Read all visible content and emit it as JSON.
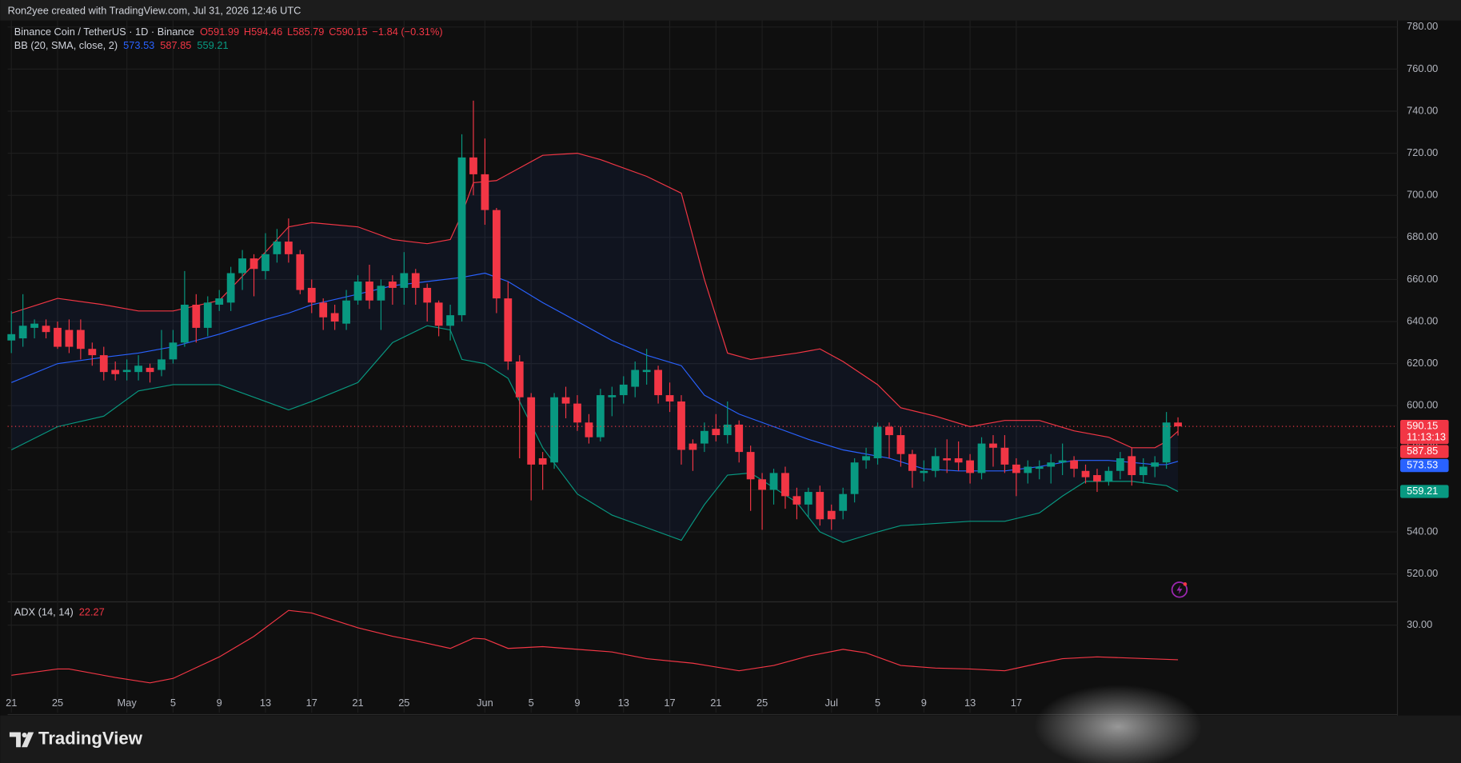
{
  "chart_data": {
    "type": "candlestick",
    "attribution": "Ron2yee created with TradingView.com, Jul 31, 2026 12:46 UTC",
    "symbol": "Binance Coin / TetherUS · 1D · Binance",
    "ohlc": [
      "O591.99",
      "H594.46",
      "L585.79",
      "C590.15",
      "−1.84 (−0.31%)"
    ],
    "countdown": "11:13:13",
    "brand": "TradingView",
    "up_color": "#089981",
    "down_color": "#f23645",
    "xlim": [
      -0.32,
      120
    ],
    "xticks": [
      {
        "value": 0,
        "label": "21"
      },
      {
        "value": 4,
        "label": "25"
      },
      {
        "value": 10,
        "label": "May"
      },
      {
        "value": 14,
        "label": "5"
      },
      {
        "value": 18,
        "label": "9"
      },
      {
        "value": 22,
        "label": "13"
      },
      {
        "value": 26,
        "label": "17"
      },
      {
        "value": 30,
        "label": "21"
      },
      {
        "value": 34,
        "label": "25"
      },
      {
        "value": 41,
        "label": "Jun"
      },
      {
        "value": 45,
        "label": "5"
      },
      {
        "value": 49,
        "label": "9"
      },
      {
        "value": 53,
        "label": "13"
      },
      {
        "value": 57,
        "label": "17"
      },
      {
        "value": 61,
        "label": "21"
      },
      {
        "value": 65,
        "label": "25"
      },
      {
        "value": 71,
        "label": "Jul"
      },
      {
        "value": 75,
        "label": "5"
      },
      {
        "value": 79,
        "label": "9"
      },
      {
        "value": 83,
        "label": "13"
      },
      {
        "value": 87,
        "label": "17"
      }
    ],
    "ylim": [
      507.2,
      783.1
    ],
    "yticks": [
      {
        "value": 520,
        "label": "520.00"
      },
      {
        "value": 540,
        "label": "540.00"
      },
      {
        "value": 560,
        "label": "560.00"
      },
      {
        "value": 580,
        "label": "580.00"
      },
      {
        "value": 600,
        "label": "600.00"
      },
      {
        "value": 620,
        "label": "620.00"
      },
      {
        "value": 640,
        "label": "640.00"
      },
      {
        "value": 660,
        "label": "660.00"
      },
      {
        "value": 680,
        "label": "680.00"
      },
      {
        "value": 700,
        "label": "700.00"
      },
      {
        "value": 720,
        "label": "720.00"
      },
      {
        "value": 740,
        "label": "740.00"
      },
      {
        "value": 760,
        "label": "760.00"
      },
      {
        "value": 780,
        "label": "780.00"
      }
    ],
    "grid": true,
    "candles": [
      {
        "o": 631,
        "h": 645,
        "l": 625,
        "c": 634
      },
      {
        "o": 632,
        "h": 653,
        "l": 628,
        "c": 638
      },
      {
        "o": 637,
        "h": 641,
        "l": 632,
        "c": 639
      },
      {
        "o": 638,
        "h": 641,
        "l": 632,
        "c": 635
      },
      {
        "o": 637,
        "h": 640,
        "l": 627,
        "c": 628
      },
      {
        "o": 636,
        "h": 641,
        "l": 625,
        "c": 628
      },
      {
        "o": 636,
        "h": 641,
        "l": 622,
        "c": 627
      },
      {
        "o": 627,
        "h": 630,
        "l": 619,
        "c": 624
      },
      {
        "o": 624,
        "h": 628,
        "l": 612,
        "c": 616
      },
      {
        "o": 617,
        "h": 621,
        "l": 612,
        "c": 615
      },
      {
        "o": 616,
        "h": 622,
        "l": 612,
        "c": 617
      },
      {
        "o": 616,
        "h": 624,
        "l": 612,
        "c": 619
      },
      {
        "o": 618,
        "h": 620,
        "l": 611,
        "c": 616
      },
      {
        "o": 617,
        "h": 636,
        "l": 614,
        "c": 622
      },
      {
        "o": 622,
        "h": 636,
        "l": 620,
        "c": 630
      },
      {
        "o": 630,
        "h": 664,
        "l": 628,
        "c": 648
      },
      {
        "o": 648,
        "h": 653,
        "l": 630,
        "c": 637
      },
      {
        "o": 637,
        "h": 652,
        "l": 633,
        "c": 649
      },
      {
        "o": 648,
        "h": 655,
        "l": 645,
        "c": 651
      },
      {
        "o": 649,
        "h": 666,
        "l": 645,
        "c": 663
      },
      {
        "o": 663,
        "h": 674,
        "l": 655,
        "c": 670
      },
      {
        "o": 670,
        "h": 672,
        "l": 652,
        "c": 665
      },
      {
        "o": 664,
        "h": 682,
        "l": 660,
        "c": 672
      },
      {
        "o": 672,
        "h": 684,
        "l": 668,
        "c": 678
      },
      {
        "o": 678,
        "h": 689,
        "l": 668,
        "c": 672
      },
      {
        "o": 672,
        "h": 674,
        "l": 653,
        "c": 655
      },
      {
        "o": 656,
        "h": 660,
        "l": 644,
        "c": 649
      },
      {
        "o": 649,
        "h": 651,
        "l": 636,
        "c": 642
      },
      {
        "o": 644,
        "h": 648,
        "l": 636,
        "c": 640
      },
      {
        "o": 639,
        "h": 655,
        "l": 636,
        "c": 650
      },
      {
        "o": 650,
        "h": 662,
        "l": 648,
        "c": 659
      },
      {
        "o": 659,
        "h": 667,
        "l": 646,
        "c": 650
      },
      {
        "o": 650,
        "h": 660,
        "l": 636,
        "c": 657
      },
      {
        "o": 659,
        "h": 662,
        "l": 648,
        "c": 656
      },
      {
        "o": 656,
        "h": 673,
        "l": 648,
        "c": 663
      },
      {
        "o": 663,
        "h": 665,
        "l": 648,
        "c": 656
      },
      {
        "o": 656,
        "h": 658,
        "l": 640,
        "c": 649
      },
      {
        "o": 649,
        "h": 650,
        "l": 633,
        "c": 638
      },
      {
        "o": 638,
        "h": 648,
        "l": 631,
        "c": 643
      },
      {
        "o": 643,
        "h": 729,
        "l": 640,
        "c": 718
      },
      {
        "o": 718,
        "h": 745,
        "l": 700,
        "c": 710
      },
      {
        "o": 710,
        "h": 727,
        "l": 686,
        "c": 693
      },
      {
        "o": 693,
        "h": 694,
        "l": 644,
        "c": 651
      },
      {
        "o": 651,
        "h": 659,
        "l": 617,
        "c": 621
      },
      {
        "o": 621,
        "h": 624,
        "l": 575,
        "c": 604
      },
      {
        "o": 604,
        "h": 606,
        "l": 555,
        "c": 572
      },
      {
        "o": 575,
        "h": 578,
        "l": 560,
        "c": 572
      },
      {
        "o": 573,
        "h": 606,
        "l": 570,
        "c": 604
      },
      {
        "o": 604,
        "h": 609,
        "l": 594,
        "c": 601
      },
      {
        "o": 601,
        "h": 605,
        "l": 588,
        "c": 592
      },
      {
        "o": 592,
        "h": 596,
        "l": 582,
        "c": 585
      },
      {
        "o": 585,
        "h": 608,
        "l": 583,
        "c": 605
      },
      {
        "o": 604,
        "h": 609,
        "l": 595,
        "c": 605
      },
      {
        "o": 605,
        "h": 614,
        "l": 601,
        "c": 610
      },
      {
        "o": 609,
        "h": 621,
        "l": 604,
        "c": 617
      },
      {
        "o": 616,
        "h": 627,
        "l": 610,
        "c": 617
      },
      {
        "o": 617,
        "h": 619,
        "l": 601,
        "c": 605
      },
      {
        "o": 605,
        "h": 611,
        "l": 597,
        "c": 602
      },
      {
        "o": 602,
        "h": 605,
        "l": 572,
        "c": 579
      },
      {
        "o": 582,
        "h": 584,
        "l": 569,
        "c": 579
      },
      {
        "o": 582,
        "h": 592,
        "l": 578,
        "c": 588
      },
      {
        "o": 589,
        "h": 596,
        "l": 583,
        "c": 586
      },
      {
        "o": 586,
        "h": 602,
        "l": 582,
        "c": 591
      },
      {
        "o": 591,
        "h": 593,
        "l": 573,
        "c": 578
      },
      {
        "o": 578,
        "h": 581,
        "l": 550,
        "c": 565
      },
      {
        "o": 565,
        "h": 568,
        "l": 541,
        "c": 560
      },
      {
        "o": 560,
        "h": 570,
        "l": 553,
        "c": 568
      },
      {
        "o": 568,
        "h": 571,
        "l": 551,
        "c": 557
      },
      {
        "o": 557,
        "h": 561,
        "l": 546,
        "c": 553
      },
      {
        "o": 553,
        "h": 561,
        "l": 547,
        "c": 559
      },
      {
        "o": 559,
        "h": 562,
        "l": 543,
        "c": 546
      },
      {
        "o": 550,
        "h": 553,
        "l": 541,
        "c": 546
      },
      {
        "o": 550,
        "h": 561,
        "l": 546,
        "c": 558
      },
      {
        "o": 558,
        "h": 575,
        "l": 554,
        "c": 573
      },
      {
        "o": 574,
        "h": 580,
        "l": 570,
        "c": 576
      },
      {
        "o": 575,
        "h": 592,
        "l": 572,
        "c": 590
      },
      {
        "o": 590,
        "h": 592,
        "l": 575,
        "c": 586
      },
      {
        "o": 586,
        "h": 590,
        "l": 571,
        "c": 577
      },
      {
        "o": 577,
        "h": 579,
        "l": 561,
        "c": 569
      },
      {
        "o": 568,
        "h": 574,
        "l": 564,
        "c": 569
      },
      {
        "o": 569,
        "h": 580,
        "l": 566,
        "c": 576
      },
      {
        "o": 575,
        "h": 584,
        "l": 568,
        "c": 574
      },
      {
        "o": 575,
        "h": 583,
        "l": 569,
        "c": 573
      },
      {
        "o": 574,
        "h": 577,
        "l": 563,
        "c": 568
      },
      {
        "o": 568,
        "h": 585,
        "l": 565,
        "c": 582
      },
      {
        "o": 582,
        "h": 586,
        "l": 571,
        "c": 580
      },
      {
        "o": 580,
        "h": 586,
        "l": 568,
        "c": 572
      },
      {
        "o": 572,
        "h": 575,
        "l": 557,
        "c": 568
      },
      {
        "o": 568,
        "h": 574,
        "l": 563,
        "c": 571
      },
      {
        "o": 570,
        "h": 574,
        "l": 565,
        "c": 571
      },
      {
        "o": 571,
        "h": 577,
        "l": 563,
        "c": 573
      },
      {
        "o": 573,
        "h": 582,
        "l": 567,
        "c": 574
      },
      {
        "o": 574,
        "h": 576,
        "l": 566,
        "c": 570
      },
      {
        "o": 569,
        "h": 572,
        "l": 563,
        "c": 566
      },
      {
        "o": 567,
        "h": 570,
        "l": 559,
        "c": 564
      },
      {
        "o": 564,
        "h": 571,
        "l": 562,
        "c": 569
      },
      {
        "o": 569,
        "h": 578,
        "l": 565,
        "c": 575
      },
      {
        "o": 576,
        "h": 580,
        "l": 562,
        "c": 567
      },
      {
        "o": 567,
        "h": 575,
        "l": 563,
        "c": 571
      },
      {
        "o": 571,
        "h": 576,
        "l": 566,
        "c": 573
      },
      {
        "o": 573,
        "h": 597,
        "l": 570,
        "c": 592
      },
      {
        "o": 591.99,
        "h": 594.46,
        "l": 585.79,
        "c": 590.15
      }
    ],
    "bb": {
      "label": "BB (20, SMA, close, 2)",
      "fill": "rgba(41,98,255,0.07)",
      "series": [
        {
          "color": "#f23645",
          "x": [
            0,
            4,
            8,
            11,
            14,
            18,
            22,
            24,
            26,
            30,
            33,
            36,
            38,
            39,
            40,
            42,
            44,
            46,
            49,
            51,
            55,
            58,
            60,
            62,
            64,
            68,
            70,
            72,
            75,
            77,
            80,
            83,
            86,
            89,
            92,
            95,
            97,
            99,
            100,
            101
          ],
          "values": [
            644,
            651,
            648,
            645,
            645,
            650,
            673,
            685,
            687,
            685,
            679,
            677,
            679,
            691,
            706,
            707,
            713,
            719,
            720,
            717,
            709,
            701,
            660,
            625,
            622,
            625,
            627,
            621,
            610,
            599,
            595,
            590,
            593,
            593,
            588,
            585,
            580,
            580,
            583,
            587.85
          ]
        },
        {
          "color": "#2962ff",
          "x": [
            0,
            4,
            8,
            11,
            14,
            18,
            22,
            24,
            26,
            30,
            33,
            36,
            39,
            41,
            43,
            46,
            49,
            52,
            55,
            58,
            60,
            63,
            66,
            69,
            72,
            76,
            79,
            82,
            86,
            89,
            92,
            95,
            97,
            99,
            100,
            101
          ],
          "values": [
            611,
            620,
            623,
            625,
            628,
            634,
            641,
            644,
            648,
            653,
            657,
            659,
            661,
            663,
            659,
            649,
            640,
            631,
            624,
            619,
            605,
            596,
            590,
            584,
            579,
            575,
            570,
            569,
            569,
            571,
            574,
            574,
            573,
            572,
            572,
            573.53
          ]
        },
        {
          "color": "#089981",
          "x": [
            0,
            4,
            8,
            11,
            14,
            18,
            22,
            24,
            26,
            30,
            33,
            36,
            38,
            39,
            41,
            43,
            44,
            46,
            49,
            52,
            55,
            58,
            60,
            62,
            64,
            68,
            70,
            72,
            75,
            77,
            83,
            86,
            89,
            91,
            93,
            95,
            97,
            100,
            101
          ],
          "values": [
            579,
            590,
            595,
            607,
            610,
            610,
            602,
            598,
            602,
            611,
            630,
            638,
            636,
            622,
            620,
            613,
            602,
            580,
            558,
            548,
            542,
            536,
            553,
            567,
            568,
            554,
            540,
            535,
            540,
            543,
            545,
            545,
            549,
            557,
            564,
            564,
            564,
            562,
            559.21
          ]
        }
      ]
    },
    "adx": {
      "label": "ADX (14, 14)",
      "color": "#f23645",
      "ylim": [
        14.6,
        35
      ],
      "yticks": [
        {
          "value": 30,
          "label": "30.00"
        }
      ],
      "x": [
        0,
        4,
        5,
        9,
        12,
        14,
        18,
        21,
        24,
        26,
        30,
        33,
        35,
        38,
        40,
        41,
        43,
        46,
        49,
        52,
        55,
        59,
        63,
        66,
        69,
        72,
        74,
        77,
        80,
        83,
        86,
        89,
        91,
        94,
        101
      ],
      "values": [
        18.8,
        20.2,
        20.2,
        18.3,
        17.1,
        18.1,
        22.9,
        27.5,
        33.3,
        32.7,
        29.4,
        27.5,
        26.5,
        24.8,
        27.1,
        26.9,
        24.8,
        25.2,
        24.6,
        24.0,
        22.5,
        21.5,
        19.8,
        21.0,
        23.1,
        24.6,
        23.8,
        21.0,
        20.4,
        20.2,
        19.8,
        21.5,
        22.5,
        22.9,
        22.27
      ]
    }
  }
}
